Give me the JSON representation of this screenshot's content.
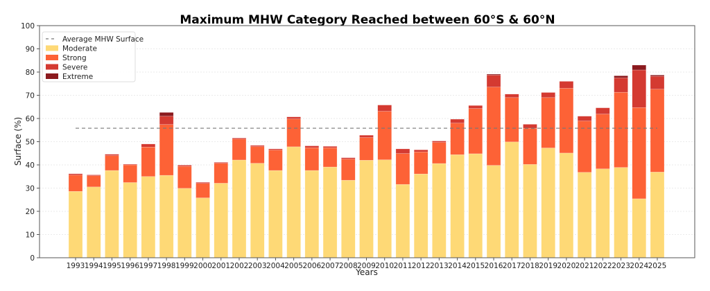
{
  "chart_data": {
    "type": "bar",
    "stacked": true,
    "title": "Maximum MHW Category Reached between 60°S & 60°N",
    "xlabel": "Years",
    "ylabel": "Surface (%)",
    "ylim": [
      0,
      100
    ],
    "yticks": [
      0,
      10,
      20,
      30,
      40,
      50,
      60,
      70,
      80,
      90,
      100
    ],
    "grid": "y-dotted",
    "legend_position": "top-left",
    "categories": [
      "1993",
      "1994",
      "1995",
      "1996",
      "1997",
      "1998",
      "1999",
      "2000",
      "2001",
      "2002",
      "2003",
      "2004",
      "2005",
      "2006",
      "2007",
      "2008",
      "2009",
      "2010",
      "2011",
      "2012",
      "2013",
      "2014",
      "2015",
      "2016",
      "2017",
      "2018",
      "2019",
      "2020",
      "2021",
      "2022",
      "2023",
      "2024",
      "2025"
    ],
    "series": [
      {
        "name": "Moderate",
        "color": "#fed976",
        "values": [
          28.6,
          30.5,
          37.6,
          32.4,
          35.0,
          35.5,
          29.9,
          25.8,
          32.1,
          42.1,
          40.7,
          37.6,
          47.8,
          37.6,
          39.1,
          33.4,
          42.0,
          42.2,
          31.6,
          36.1,
          40.6,
          44.4,
          44.8,
          39.8,
          49.9,
          40.2,
          47.3,
          45.1,
          36.8,
          38.3,
          38.9,
          25.4,
          36.9
        ]
      },
      {
        "name": "Strong",
        "color": "#fd6236",
        "values": [
          7.0,
          4.8,
          6.4,
          7.6,
          12.7,
          21.9,
          9.5,
          6.2,
          8.6,
          9.0,
          7.2,
          8.8,
          12.0,
          9.8,
          8.3,
          9.1,
          9.8,
          20.9,
          13.3,
          9.5,
          9.1,
          13.6,
          19.5,
          33.7,
          19.1,
          15.6,
          21.7,
          27.9,
          22.1,
          23.6,
          32.4,
          39.3,
          35.7
        ]
      },
      {
        "name": "Severe",
        "color": "#d43a31",
        "values": [
          0.6,
          0.4,
          0.6,
          0.3,
          1.3,
          3.6,
          0.5,
          0.5,
          0.4,
          0.5,
          0.5,
          0.5,
          0.9,
          0.8,
          0.6,
          0.6,
          1.0,
          2.7,
          2.0,
          0.9,
          0.6,
          1.7,
          1.3,
          5.2,
          1.5,
          1.7,
          2.2,
          3.0,
          2.1,
          2.7,
          6.2,
          16.2,
          5.6
        ]
      },
      {
        "name": "Extreme",
        "color": "#8b1a1e",
        "values": [
          0,
          0,
          0,
          0,
          0,
          1.6,
          0,
          0,
          0,
          0,
          0,
          0,
          0,
          0,
          0,
          0,
          0,
          0,
          0,
          0,
          0,
          0,
          0,
          0.4,
          0,
          0,
          0,
          0,
          0,
          0,
          0.9,
          2.1,
          0.5
        ]
      }
    ],
    "reference_line": {
      "name": "Average MHW Surface",
      "value": 55.8,
      "color": "#777777",
      "style": "dashed"
    },
    "legend": [
      "Average MHW Surface",
      "Moderate",
      "Strong",
      "Severe",
      "Extreme"
    ]
  }
}
